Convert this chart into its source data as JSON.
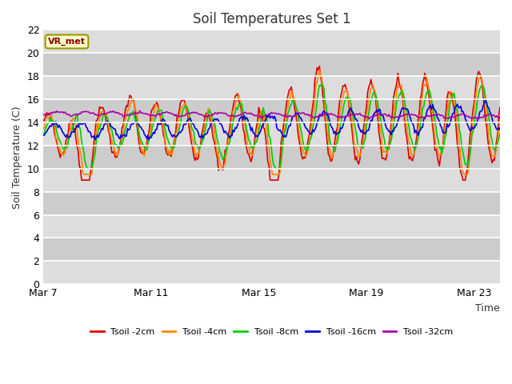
{
  "title": "Soil Temperatures Set 1",
  "xlabel": "Time",
  "ylabel": "Soil Temperature (C)",
  "ylim": [
    0,
    22
  ],
  "yticks": [
    0,
    2,
    4,
    6,
    8,
    10,
    12,
    14,
    16,
    18,
    20,
    22
  ],
  "xtick_labels": [
    "Mar 7",
    "Mar 11",
    "Mar 15",
    "Mar 19",
    "Mar 23"
  ],
  "xtick_positions": [
    0,
    96,
    192,
    288,
    384
  ],
  "series_colors": [
    "#dd0000",
    "#ff8800",
    "#00cc00",
    "#0000dd",
    "#aa00aa"
  ],
  "series_labels": [
    "Tsoil -2cm",
    "Tsoil -4cm",
    "Tsoil -8cm",
    "Tsoil -16cm",
    "Tsoil -32cm"
  ],
  "annotation_text": "VR_met",
  "bg_color": "#ffffff",
  "plot_bg_color": "#dddddd",
  "alt_band_color": "#cccccc",
  "title_fontsize": 12,
  "label_fontsize": 9,
  "tick_fontsize": 9
}
